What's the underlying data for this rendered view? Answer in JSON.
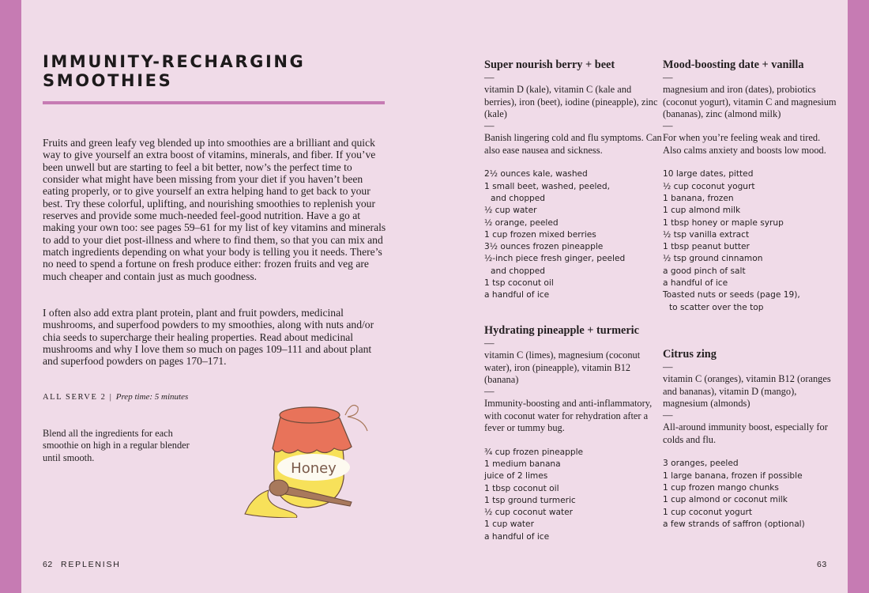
{
  "left_page": {
    "title": "IMMUNITY-RECHARGING SMOOTHIES",
    "intro_paragraphs": [
      "Fruits and green leafy veg blended up into smoothies are a brilliant and quick way to give yourself an extra boost of vitamins, minerals, and fiber. If you’ve been unwell but are starting to feel a bit better, now’s the perfect time to consider what might have been missing from your diet if you haven’t been eating properly, or to give yourself an extra helping hand to get back to your best. Try these colorful, uplifting, and nourishing smoothies to replenish your reserves and provide some much-needed feel-good nutrition. Have a go at making your own too: see pages 59–61 for my list of key vitamins and minerals to add to your diet post-illness and where to find them, so that you can mix and match ingredients depending on what your body is telling you it needs. There’s no need to spend a fortune on fresh produce either: frozen fruits and veg are much cheaper and contain just as much goodness.",
      "I often also add extra plant protein, plant and fruit powders, medicinal mushrooms, and superfood powders to my smoothies, along with nuts and/or chia seeds to supercharge their healing properties. Read about medicinal mushrooms and why I love them so much on pages 109–111 and about plant and superfood powders on pages 170–171."
    ],
    "serves": "ALL SERVE 2",
    "separator": "|",
    "prep_time": "Prep time: 5 minutes",
    "method": "Blend all the ingredients for each smoothie on high in a regular blender until smooth.",
    "illustration": {
      "jar_label": "Honey",
      "colors": {
        "lid": "#e8735a",
        "jar": "#f7e15a",
        "dipper": "#a8795c"
      }
    },
    "page_number": "62",
    "section": "REPLENISH"
  },
  "right_page": {
    "page_number": "63",
    "dash": "—",
    "recipes": [
      {
        "title": "Super nourish berry + beet",
        "nutrients": "vitamin D (kale), vitamin C (kale and berries), iron (beet), iodine (pineapple), zinc (kale)",
        "description": "Banish lingering cold and flu symptoms. Can also ease nausea and sickness.",
        "ingredients": [
          "2½ ounces kale, washed",
          "1 small beet, washed, peeled,",
          "and chopped",
          "½ cup water",
          "½ orange, peeled",
          "1 cup frozen mixed berries",
          "3½ ounces frozen pineapple",
          "½-inch piece fresh ginger, peeled",
          "and chopped",
          "1 tsp coconut oil",
          "a handful of ice"
        ],
        "indented": [
          2,
          8
        ]
      },
      {
        "title": "Hydrating pineapple + turmeric",
        "nutrients": "vitamin C (limes), magnesium (coconut water), iron (pineapple), vitamin B12 (banana)",
        "description": "Immunity-boosting and anti-inflammatory, with coconut water for rehydration after a fever or tummy bug.",
        "ingredients": [
          "¾ cup frozen pineapple",
          "1 medium banana",
          "juice of 2 limes",
          "1 tbsp coconut oil",
          "1 tsp ground turmeric",
          "½ cup coconut water",
          "1 cup water",
          "a handful of ice"
        ],
        "indented": []
      },
      {
        "title": "Mood-boosting date + vanilla",
        "nutrients": "magnesium and iron (dates), probiotics (coconut yogurt), vitamin C and magnesium (bananas), zinc (almond milk)",
        "description": "For when you’re feeling weak and tired. Also calms anxiety and boosts low mood.",
        "ingredients": [
          "10 large dates, pitted",
          "½ cup coconut yogurt",
          "1 banana, frozen",
          "1 cup almond milk",
          "1 tbsp honey or maple syrup",
          "½ tsp vanilla extract",
          "1 tbsp peanut butter",
          "½ tsp ground cinnamon",
          "a good pinch of salt",
          "a handful of ice",
          "Toasted nuts or seeds (page 19),",
          "to scatter over the top"
        ],
        "indented": [
          11
        ]
      },
      {
        "title": "Citrus zing",
        "nutrients": "vitamin C (oranges), vitamin B12 (oranges and bananas), vitamin D (mango), magnesium (almonds)",
        "description": "All-around immunity boost, especially for colds and flu.",
        "ingredients": [
          "3 oranges, peeled",
          "1 large banana, frozen if possible",
          "1 cup frozen mango chunks",
          "1 cup almond or coconut milk",
          "1 cup coconut yogurt",
          "a few strands of saffron (optional)"
        ],
        "indented": []
      }
    ]
  },
  "colors": {
    "page": "#f0dbe8",
    "accent": "#c67bb3",
    "text": "#231f20"
  }
}
